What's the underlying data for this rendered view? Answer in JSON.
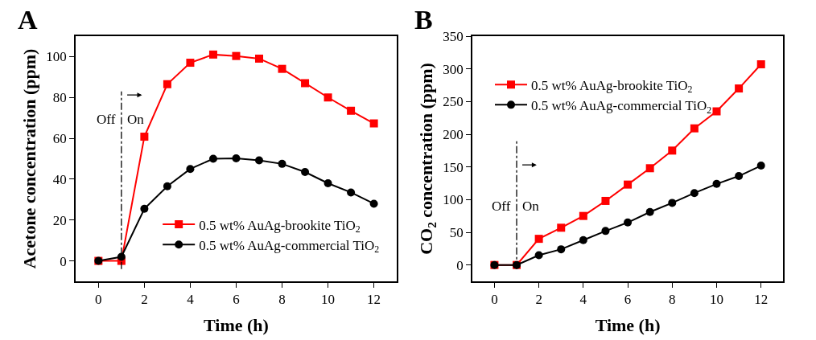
{
  "chart_data": [
    {
      "type": "line",
      "title": "A",
      "xlabel": "Time (h)",
      "ylabel": "Acetone concentration (ppm)",
      "x": [
        0,
        1,
        2,
        3,
        4,
        5,
        6,
        7,
        8,
        9,
        10,
        11,
        12
      ],
      "series": [
        {
          "name": "0.5 wt% AuAg-brookite TiO$_{2}$",
          "color": "#ff0000",
          "marker": "square",
          "values": [
            0,
            0,
            60.8,
            86.5,
            97,
            101,
            100.3,
            99,
            94,
            87,
            80,
            73.5,
            67.3
          ]
        },
        {
          "name": "0.5 wt% AuAg-commercial TiO$_{2}$",
          "color": "#000000",
          "marker": "circle",
          "values": [
            0,
            2,
            25.5,
            36.5,
            45,
            50,
            50.2,
            49.2,
            47.5,
            43.5,
            38,
            33.5,
            28
          ]
        }
      ],
      "xlim": [
        -1,
        13
      ],
      "xticks": [
        0,
        2,
        4,
        6,
        8,
        10,
        12
      ],
      "ylim": [
        -10,
        110
      ],
      "yticks": [
        0,
        20,
        40,
        60,
        80,
        100
      ],
      "ref_lines": [
        {
          "axis": "x",
          "value": 1,
          "color": "#000000",
          "line_style": "dashdot"
        }
      ],
      "annotations": [
        "Off",
        "On"
      ],
      "legend": "bottom right",
      "line_style": "solid"
    },
    {
      "type": "line",
      "title": "B",
      "xlabel": "Time (h)",
      "ylabel": "CO$_{2}$ concentration (ppm)",
      "x": [
        0,
        1,
        2,
        3,
        4,
        5,
        6,
        7,
        8,
        9,
        10,
        11,
        12
      ],
      "series": [
        {
          "name": "0.5 wt% AuAg-brookite TiO$_{2}$",
          "color": "#ff0000",
          "marker": "square",
          "values": [
            0,
            0,
            40,
            57,
            75,
            98,
            123,
            148,
            175,
            209,
            235,
            270,
            307
          ]
        },
        {
          "name": "0.5 wt% AuAg-commercial TiO$_{2}$",
          "color": "#000000",
          "marker": "circle",
          "values": [
            0,
            0,
            15,
            24,
            38,
            52,
            65,
            81,
            95,
            110,
            124,
            136,
            152
          ]
        }
      ],
      "xlim": [
        -1,
        13
      ],
      "xticks": [
        0,
        2,
        4,
        6,
        8,
        10,
        12
      ],
      "ylim": [
        -25,
        350
      ],
      "yticks": [
        0,
        50,
        100,
        150,
        200,
        250,
        300,
        350
      ],
      "ref_lines": [
        {
          "axis": "x",
          "value": 1,
          "color": "#000000",
          "line_style": "dashdot"
        }
      ],
      "annotations": [
        "Off",
        "On"
      ],
      "legend": "top left",
      "line_style": "solid"
    }
  ]
}
